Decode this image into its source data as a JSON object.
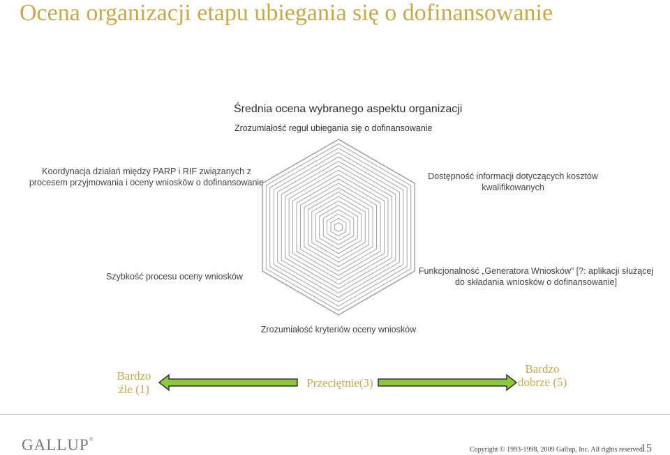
{
  "slide": {
    "title": "Ocena organizacji etapu ubiegania się o dofinansowanie",
    "chart_title": "Średnia ocena wybranego aspektu organizacji",
    "chart_subtitle": "Zrozumiałość reguł ubiegania się o dofinansowanie",
    "page_number": "15"
  },
  "chart_data": {
    "type": "radar",
    "title": "Średnia ocena wybranego aspektu organizacji",
    "subtitle": "Zrozumiałość reguł ubiegania się o dofinansowanie",
    "axes": [
      "Zrozumiałość reguł ubiegania się o dofinansowanie",
      "Dostępność informacji dotyczących kosztów kwalifikowanych",
      "Funkcjonalność „Generatora Wniosków” [?: aplikacji służącej do składania wniosków o dofinansowanie]",
      "Zrozumiałość kryteriów oceny wniosków",
      "Szybkość procesu oceny wniosków",
      "Koordynacja działań między PARP i RIF związanych z procesem przyjmowania i oceny wniosków o dofinansowanie"
    ],
    "grid_rings": 20,
    "series": []
  },
  "labels": {
    "top_left": "Koordynacja działań między PARP i RIF związanych z procesem przyjmowania i oceny wniosków o dofinansowanie",
    "top_right": "Dostępność informacji dotyczących kosztów kwalifikowanych",
    "left": "Szybkość procesu oceny wniosków",
    "right": "Funkcjonalność „Generatora Wniosków” [?: aplikacji służącej do składania wniosków o dofinansowanie]",
    "bottom": "Zrozumiałość kryteriów oceny wniosków"
  },
  "scale": {
    "low": "Bardzo źle (1)",
    "mid": "Przeciętnie(3)",
    "high": "Bardzo dobrze (5)",
    "arrow_color": "#8dc63f",
    "arrow_outline": "#333333"
  },
  "footer": {
    "logo": "GALLUP",
    "logo_mark": "®",
    "copyright": "Copyright © 1993-1998, 2009 Gallup, Inc. All rights reserved."
  },
  "colors": {
    "title": "#c8a84b",
    "grid": "#9a9a9a"
  }
}
